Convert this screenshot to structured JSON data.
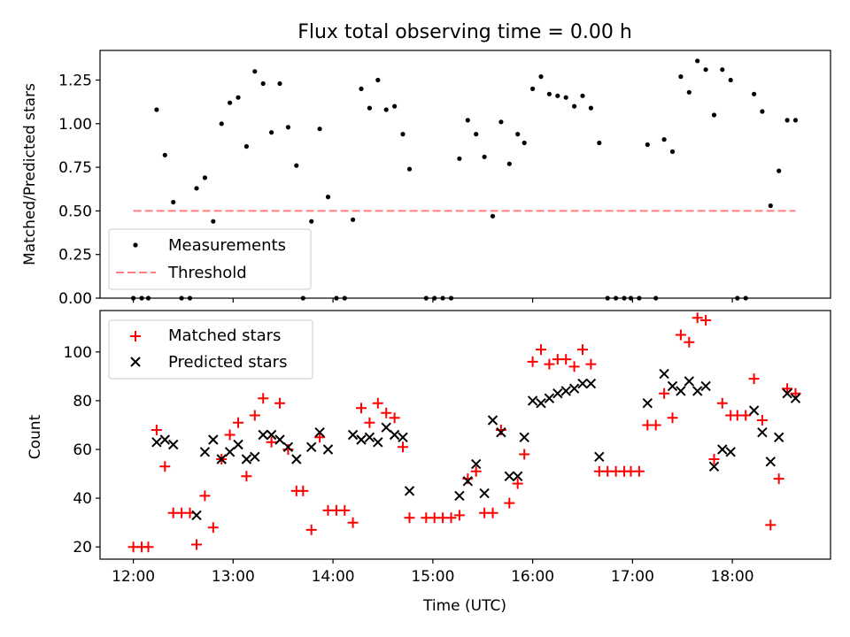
{
  "chart_data": [
    {
      "type": "scatter",
      "title": "Flux total observing time = 0.00 h",
      "xlabel": "",
      "ylabel": "Matched/Predicted stars",
      "xlim": [
        "11:40",
        "18:59"
      ],
      "ylim": [
        0,
        1.42
      ],
      "yticks": [
        0.0,
        0.25,
        0.5,
        0.75,
        1.0,
        1.25
      ],
      "ytick_labels": [
        "0.00",
        "0.25",
        "0.50",
        "0.75",
        "1.00",
        "1.25"
      ],
      "legend_position": "lower-left",
      "grid": false,
      "series": [
        {
          "name": "Measurements",
          "style": "point",
          "color": "#000000",
          "points": [
            [
              "12:00",
              0
            ],
            [
              "12:05",
              0
            ],
            [
              "12:09",
              0
            ],
            [
              "12:14",
              1.08
            ],
            [
              "12:19",
              0.82
            ],
            [
              "12:24",
              0.55
            ],
            [
              "12:29",
              0
            ],
            [
              "12:34",
              0
            ],
            [
              "12:38",
              0.63
            ],
            [
              "12:43",
              0.69
            ],
            [
              "12:48",
              0.44
            ],
            [
              "12:53",
              1.0
            ],
            [
              "12:58",
              1.12
            ],
            [
              "13:03",
              1.15
            ],
            [
              "13:08",
              0.87
            ],
            [
              "13:13",
              1.3
            ],
            [
              "13:18",
              1.23
            ],
            [
              "13:23",
              0.95
            ],
            [
              "13:28",
              1.23
            ],
            [
              "13:33",
              0.98
            ],
            [
              "13:38",
              0.76
            ],
            [
              "13:42",
              0
            ],
            [
              "13:47",
              0.44
            ],
            [
              "13:52",
              0.97
            ],
            [
              "13:57",
              0.58
            ],
            [
              "14:02",
              0
            ],
            [
              "14:07",
              0
            ],
            [
              "14:12",
              0.45
            ],
            [
              "14:17",
              1.2
            ],
            [
              "14:22",
              1.09
            ],
            [
              "14:27",
              1.25
            ],
            [
              "14:32",
              1.08
            ],
            [
              "14:37",
              1.1
            ],
            [
              "14:42",
              0.94
            ],
            [
              "14:46",
              0.74
            ],
            [
              "14:56",
              0
            ],
            [
              "15:01",
              0
            ],
            [
              "15:06",
              0
            ],
            [
              "15:11",
              0
            ],
            [
              "15:16",
              0.8
            ],
            [
              "15:21",
              1.02
            ],
            [
              "15:26",
              0.94
            ],
            [
              "15:31",
              0.81
            ],
            [
              "15:36",
              0.47
            ],
            [
              "15:41",
              1.01
            ],
            [
              "15:46",
              0.77
            ],
            [
              "15:51",
              0.94
            ],
            [
              "15:55",
              0.89
            ],
            [
              "16:00",
              1.2
            ],
            [
              "16:05",
              1.27
            ],
            [
              "16:10",
              1.17
            ],
            [
              "16:15",
              1.16
            ],
            [
              "16:20",
              1.15
            ],
            [
              "16:25",
              1.1
            ],
            [
              "16:30",
              1.16
            ],
            [
              "16:35",
              1.09
            ],
            [
              "16:40",
              0.89
            ],
            [
              "16:45",
              0
            ],
            [
              "16:50",
              0
            ],
            [
              "16:55",
              0
            ],
            [
              "16:59",
              0
            ],
            [
              "17:04",
              0
            ],
            [
              "17:09",
              0.88
            ],
            [
              "17:14",
              0
            ],
            [
              "17:19",
              0.91
            ],
            [
              "17:24",
              0.84
            ],
            [
              "17:29",
              1.27
            ],
            [
              "17:34",
              1.18
            ],
            [
              "17:39",
              1.36
            ],
            [
              "17:44",
              1.31
            ],
            [
              "17:49",
              1.05
            ],
            [
              "17:54",
              1.31
            ],
            [
              "17:59",
              1.25
            ],
            [
              "18:03",
              0
            ],
            [
              "18:08",
              0
            ],
            [
              "18:13",
              1.17
            ],
            [
              "18:18",
              1.07
            ],
            [
              "18:23",
              0.53
            ],
            [
              "18:28",
              0.73
            ],
            [
              "18:33",
              1.02
            ],
            [
              "18:38",
              1.02
            ]
          ]
        },
        {
          "name": "Threshold",
          "style": "dashed-line",
          "color": "#ff7f7f",
          "points": [
            [
              "12:00",
              0.5
            ],
            [
              "18:38",
              0.5
            ]
          ]
        }
      ]
    },
    {
      "type": "scatter",
      "title": "",
      "xlabel": "Time (UTC)",
      "ylabel": "Count",
      "xlim": [
        "11:40",
        "18:59"
      ],
      "ylim": [
        15,
        117
      ],
      "yticks": [
        20,
        40,
        60,
        80,
        100
      ],
      "ytick_labels": [
        "20",
        "40",
        "60",
        "80",
        "100"
      ],
      "xticks": [
        "12:00",
        "13:00",
        "14:00",
        "15:00",
        "16:00",
        "17:00",
        "18:00"
      ],
      "legend_position": "upper-left",
      "grid": false,
      "series": [
        {
          "name": "Matched stars",
          "marker": "+",
          "color": "#ff0000",
          "points": [
            [
              "12:00",
              20
            ],
            [
              "12:05",
              20
            ],
            [
              "12:09",
              20
            ],
            [
              "12:14",
              68
            ],
            [
              "12:19",
              53
            ],
            [
              "12:24",
              34
            ],
            [
              "12:29",
              34
            ],
            [
              "12:34",
              34
            ],
            [
              "12:38",
              21
            ],
            [
              "12:43",
              41
            ],
            [
              "12:48",
              28
            ],
            [
              "12:53",
              56
            ],
            [
              "12:58",
              66
            ],
            [
              "13:03",
              71
            ],
            [
              "13:08",
              49
            ],
            [
              "13:13",
              74
            ],
            [
              "13:18",
              81
            ],
            [
              "13:23",
              63
            ],
            [
              "13:28",
              79
            ],
            [
              "13:33",
              60
            ],
            [
              "13:38",
              43
            ],
            [
              "13:42",
              43
            ],
            [
              "13:47",
              27
            ],
            [
              "13:52",
              65
            ],
            [
              "13:57",
              35
            ],
            [
              "14:02",
              35
            ],
            [
              "14:07",
              35
            ],
            [
              "14:12",
              30
            ],
            [
              "14:17",
              77
            ],
            [
              "14:22",
              71
            ],
            [
              "14:27",
              79
            ],
            [
              "14:32",
              75
            ],
            [
              "14:37",
              73
            ],
            [
              "14:42",
              61
            ],
            [
              "14:46",
              32
            ],
            [
              "14:56",
              32
            ],
            [
              "15:01",
              32
            ],
            [
              "15:06",
              32
            ],
            [
              "15:11",
              32
            ],
            [
              "15:16",
              33
            ],
            [
              "15:21",
              48
            ],
            [
              "15:26",
              51
            ],
            [
              "15:31",
              34
            ],
            [
              "15:36",
              34
            ],
            [
              "15:41",
              68
            ],
            [
              "15:46",
              38
            ],
            [
              "15:51",
              46
            ],
            [
              "15:55",
              58
            ],
            [
              "16:00",
              96
            ],
            [
              "16:05",
              101
            ],
            [
              "16:10",
              95
            ],
            [
              "16:15",
              97
            ],
            [
              "16:20",
              97
            ],
            [
              "16:25",
              94
            ],
            [
              "16:30",
              101
            ],
            [
              "16:35",
              95
            ],
            [
              "16:40",
              51
            ],
            [
              "16:45",
              51
            ],
            [
              "16:50",
              51
            ],
            [
              "16:55",
              51
            ],
            [
              "16:59",
              51
            ],
            [
              "17:04",
              51
            ],
            [
              "17:09",
              70
            ],
            [
              "17:14",
              70
            ],
            [
              "17:19",
              83
            ],
            [
              "17:24",
              73
            ],
            [
              "17:29",
              107
            ],
            [
              "17:34",
              104
            ],
            [
              "17:39",
              114
            ],
            [
              "17:44",
              113
            ],
            [
              "17:49",
              56
            ],
            [
              "17:54",
              79
            ],
            [
              "17:59",
              74
            ],
            [
              "18:03",
              74
            ],
            [
              "18:08",
              74
            ],
            [
              "18:13",
              89
            ],
            [
              "18:18",
              72
            ],
            [
              "18:23",
              29
            ],
            [
              "18:28",
              48
            ],
            [
              "18:33",
              85
            ],
            [
              "18:38",
              83
            ]
          ]
        },
        {
          "name": "Predicted stars",
          "marker": "x",
          "color": "#000000",
          "points": [
            [
              "12:14",
              63
            ],
            [
              "12:19",
              64
            ],
            [
              "12:24",
              62
            ],
            [
              "12:38",
              33
            ],
            [
              "12:43",
              59
            ],
            [
              "12:48",
              64
            ],
            [
              "12:53",
              56
            ],
            [
              "12:58",
              59
            ],
            [
              "13:03",
              62
            ],
            [
              "13:08",
              56
            ],
            [
              "13:13",
              57
            ],
            [
              "13:18",
              66
            ],
            [
              "13:23",
              66
            ],
            [
              "13:28",
              64
            ],
            [
              "13:33",
              61
            ],
            [
              "13:38",
              56
            ],
            [
              "13:47",
              61
            ],
            [
              "13:52",
              67
            ],
            [
              "13:57",
              60
            ],
            [
              "14:12",
              66
            ],
            [
              "14:17",
              64
            ],
            [
              "14:22",
              65
            ],
            [
              "14:27",
              63
            ],
            [
              "14:32",
              69
            ],
            [
              "14:37",
              66
            ],
            [
              "14:42",
              65
            ],
            [
              "14:46",
              43
            ],
            [
              "15:16",
              41
            ],
            [
              "15:21",
              47
            ],
            [
              "15:26",
              54
            ],
            [
              "15:31",
              42
            ],
            [
              "15:36",
              72
            ],
            [
              "15:41",
              67
            ],
            [
              "15:46",
              49
            ],
            [
              "15:51",
              49
            ],
            [
              "15:55",
              65
            ],
            [
              "16:00",
              80
            ],
            [
              "16:05",
              79
            ],
            [
              "16:10",
              81
            ],
            [
              "16:15",
              83
            ],
            [
              "16:20",
              84
            ],
            [
              "16:25",
              85
            ],
            [
              "16:30",
              87
            ],
            [
              "16:35",
              87
            ],
            [
              "16:40",
              57
            ],
            [
              "17:09",
              79
            ],
            [
              "17:19",
              91
            ],
            [
              "17:24",
              86
            ],
            [
              "17:29",
              84
            ],
            [
              "17:34",
              88
            ],
            [
              "17:39",
              84
            ],
            [
              "17:44",
              86
            ],
            [
              "17:49",
              53
            ],
            [
              "17:54",
              60
            ],
            [
              "17:59",
              59
            ],
            [
              "18:13",
              76
            ],
            [
              "18:18",
              67
            ],
            [
              "18:23",
              55
            ],
            [
              "18:28",
              65
            ],
            [
              "18:33",
              83
            ],
            [
              "18:38",
              81
            ]
          ]
        }
      ]
    }
  ]
}
